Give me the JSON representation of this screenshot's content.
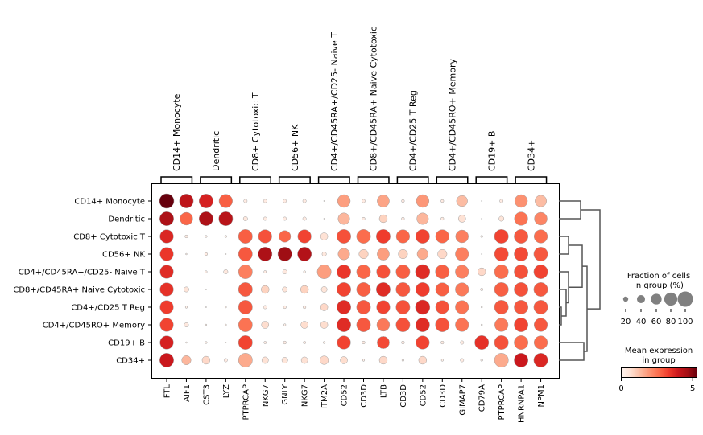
{
  "chart_data": {
    "type": "dotplot",
    "genes": [
      "FTL",
      "AIF1",
      "CST3",
      "LYZ",
      "PTPRCAP",
      "NKG7",
      "GNLY",
      "NKG7",
      "ITM2A",
      "CD52",
      "CD3D",
      "LTB",
      "CD3D",
      "CD52",
      "CD3D",
      "GIMAP7",
      "CD79A",
      "PTPRCAP",
      "HNRNPA1",
      "NPM1"
    ],
    "gene_groups": [
      {
        "label": "CD14+ Monocyte",
        "start": 0,
        "end": 1
      },
      {
        "label": "Dendritic",
        "start": 2,
        "end": 3
      },
      {
        "label": "CD8+ Cytotoxic T",
        "start": 4,
        "end": 5
      },
      {
        "label": "CD56+ NK",
        "start": 6,
        "end": 7
      },
      {
        "label": "CD4+/CD45RA+/CD25- Naive T",
        "start": 8,
        "end": 9
      },
      {
        "label": "CD8+/CD45RA+ Naive Cytotoxic",
        "start": 10,
        "end": 11
      },
      {
        "label": "CD4+/CD25 T Reg",
        "start": 12,
        "end": 13
      },
      {
        "label": "CD4+/CD45RO+ Memory",
        "start": 14,
        "end": 15
      },
      {
        "label": "CD19+ B",
        "start": 16,
        "end": 17
      },
      {
        "label": "CD34+",
        "start": 18,
        "end": 19
      }
    ],
    "cell_groups": [
      "CD14+ Monocyte",
      "Dendritic",
      "CD8+ Cytotoxic T",
      "CD56+ NK",
      "CD4+/CD45RA+/CD25- Naive T",
      "CD8+/CD45RA+ Naive Cytotoxic",
      "CD4+/CD25 T Reg",
      "CD4+/CD45RO+ Memory",
      "CD19+ B",
      "CD34+"
    ],
    "fraction_pct": [
      [
        100,
        95,
        95,
        90,
        15,
        15,
        15,
        15,
        3,
        85,
        15,
        80,
        12,
        85,
        12,
        70,
        3,
        15,
        85,
        75
      ],
      [
        95,
        85,
        95,
        95,
        20,
        15,
        15,
        15,
        3,
        75,
        12,
        45,
        12,
        75,
        12,
        40,
        3,
        25,
        90,
        85
      ],
      [
        90,
        12,
        8,
        8,
        95,
        90,
        75,
        90,
        40,
        95,
        95,
        95,
        90,
        95,
        90,
        85,
        8,
        95,
        95,
        90
      ],
      [
        90,
        5,
        12,
        3,
        95,
        95,
        95,
        95,
        20,
        75,
        55,
        80,
        55,
        70,
        55,
        90,
        3,
        95,
        95,
        95
      ],
      [
        90,
        0,
        8,
        20,
        95,
        10,
        20,
        8,
        95,
        95,
        95,
        90,
        95,
        100,
        95,
        90,
        45,
        95,
        95,
        95
      ],
      [
        90,
        25,
        3,
        0,
        95,
        45,
        25,
        45,
        30,
        95,
        95,
        95,
        95,
        95,
        90,
        90,
        10,
        95,
        95,
        95
      ],
      [
        90,
        8,
        3,
        5,
        95,
        15,
        12,
        12,
        40,
        95,
        95,
        90,
        95,
        100,
        90,
        90,
        5,
        95,
        95,
        95
      ],
      [
        90,
        20,
        5,
        5,
        95,
        40,
        8,
        40,
        40,
        95,
        95,
        85,
        95,
        95,
        95,
        90,
        5,
        90,
        95,
        90
      ],
      [
        90,
        5,
        8,
        3,
        95,
        10,
        12,
        10,
        8,
        90,
        12,
        80,
        12,
        90,
        12,
        15,
        95,
        95,
        95,
        90
      ],
      [
        95,
        55,
        45,
        15,
        95,
        35,
        30,
        35,
        50,
        40,
        8,
        45,
        8,
        45,
        8,
        15,
        8,
        95,
        95,
        95
      ]
    ],
    "mean_expression": [
      [
        5.3,
        4.2,
        3.8,
        2.8,
        0.3,
        0.3,
        0.3,
        0.3,
        0.1,
        1.8,
        0.3,
        1.7,
        0.3,
        1.9,
        0.3,
        1.3,
        0.1,
        0.3,
        2.0,
        1.3
      ],
      [
        4.5,
        2.7,
        4.5,
        4.3,
        0.4,
        0.3,
        0.3,
        0.3,
        0.1,
        1.4,
        0.3,
        0.9,
        0.3,
        1.4,
        0.3,
        0.6,
        0.1,
        0.5,
        2.5,
        2.2
      ],
      [
        3.7,
        0.3,
        0.2,
        0.2,
        2.8,
        3.0,
        2.7,
        3.2,
        0.6,
        3.0,
        2.6,
        3.3,
        2.7,
        3.2,
        2.7,
        2.3,
        0.2,
        3.2,
        2.9,
        2.6
      ],
      [
        3.4,
        0.2,
        0.3,
        0.1,
        2.9,
        4.5,
        4.7,
        4.4,
        0.4,
        1.6,
        0.9,
        1.8,
        0.9,
        1.6,
        0.8,
        2.3,
        0.1,
        3.1,
        3.1,
        2.9
      ],
      [
        3.6,
        0.0,
        0.2,
        0.4,
        2.3,
        0.3,
        0.4,
        0.2,
        1.8,
        3.4,
        2.7,
        3.0,
        2.8,
        3.6,
        2.8,
        2.3,
        0.8,
        2.6,
        3.0,
        3.2
      ],
      [
        3.5,
        0.5,
        0.2,
        0.0,
        2.9,
        0.9,
        0.5,
        0.9,
        0.5,
        3.2,
        2.8,
        3.6,
        2.9,
        3.3,
        2.8,
        2.4,
        0.3,
        2.8,
        3.0,
        2.9
      ],
      [
        3.3,
        0.2,
        0.2,
        0.2,
        2.9,
        0.3,
        0.3,
        0.3,
        0.8,
        3.6,
        2.9,
        3.2,
        3.0,
        3.7,
        3.0,
        2.5,
        0.2,
        2.9,
        2.9,
        2.9
      ],
      [
        3.2,
        0.4,
        0.2,
        0.2,
        2.5,
        0.7,
        0.2,
        0.7,
        0.7,
        3.6,
        2.9,
        2.4,
        3.0,
        3.6,
        3.0,
        2.5,
        0.2,
        2.4,
        3.2,
        2.9
      ],
      [
        3.8,
        0.2,
        0.2,
        0.2,
        3.2,
        0.3,
        0.3,
        0.3,
        0.2,
        3.2,
        0.3,
        3.1,
        0.3,
        3.2,
        0.3,
        0.3,
        3.5,
        3.0,
        2.6,
        2.6
      ],
      [
        4.0,
        1.4,
        0.8,
        0.3,
        1.6,
        0.6,
        0.5,
        0.6,
        0.8,
        0.7,
        0.2,
        0.8,
        0.2,
        0.8,
        0.2,
        0.3,
        0.2,
        1.6,
        4.0,
        3.7
      ]
    ],
    "colormap": "Reds",
    "color_range": [
      0,
      5.3
    ],
    "dendrogram": "right",
    "size_legend": {
      "title_line1": "Fraction of cells",
      "title_line2": "in group (%)",
      "values": [
        20,
        40,
        60,
        80,
        100
      ],
      "labels": [
        "20",
        "40",
        "60",
        "80",
        "100"
      ]
    },
    "color_legend": {
      "title_line1": "Mean expression",
      "title_line2": "in group",
      "ticks": [
        "0",
        "5"
      ],
      "tick_values": [
        0,
        5
      ]
    }
  }
}
